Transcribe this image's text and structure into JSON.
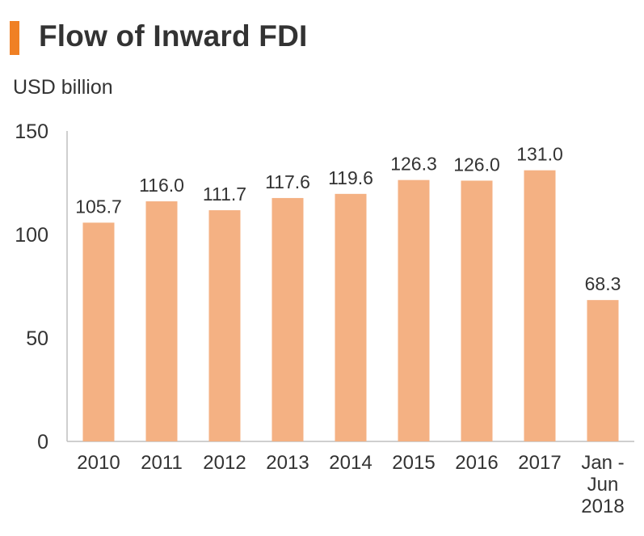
{
  "title": "Flow of Inward FDI",
  "colors": {
    "accent": "#f08024",
    "bar": "#f4b183",
    "axis": "#bfbfbf",
    "text": "#333333"
  },
  "chart_data": {
    "type": "bar",
    "title": "Flow of Inward FDI",
    "ylabel": "USD billion",
    "xlabel": "",
    "ylim": [
      0,
      150
    ],
    "yticks": [
      0,
      50,
      100,
      150
    ],
    "categories": [
      "2010",
      "2011",
      "2012",
      "2013",
      "2014",
      "2015",
      "2016",
      "2017",
      "Jan - Jun 2018"
    ],
    "category_lines": [
      [
        "2010"
      ],
      [
        "2011"
      ],
      [
        "2012"
      ],
      [
        "2013"
      ],
      [
        "2014"
      ],
      [
        "2015"
      ],
      [
        "2016"
      ],
      [
        "2017"
      ],
      [
        "Jan -",
        "Jun",
        "2018"
      ]
    ],
    "values": [
      105.7,
      116.0,
      111.7,
      117.6,
      119.6,
      126.3,
      126.0,
      131.0,
      68.3
    ],
    "value_labels": [
      "105.7",
      "116.0",
      "111.7",
      "117.6",
      "119.6",
      "126.3",
      "126.0",
      "131.0",
      "68.3"
    ],
    "grid": false,
    "legend": "none"
  }
}
